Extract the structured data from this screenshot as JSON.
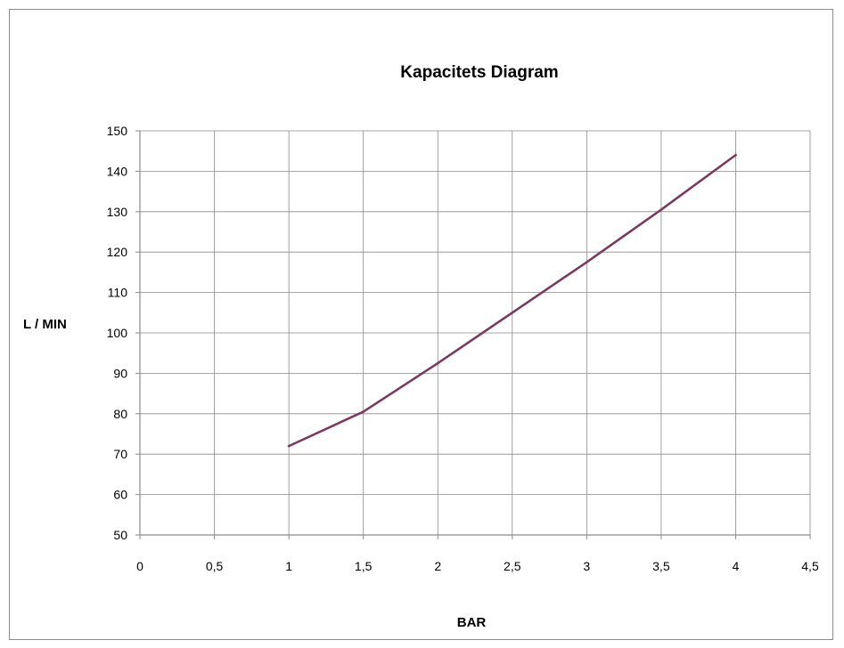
{
  "chart_data": {
    "type": "line",
    "title": "Kapacitets Diagram",
    "xlabel": "BAR",
    "ylabel": "L / MIN",
    "xlim": [
      0,
      4.5
    ],
    "ylim": [
      50,
      150
    ],
    "x_ticks": [
      0,
      0.5,
      1,
      1.5,
      2,
      2.5,
      3,
      3.5,
      4,
      4.5
    ],
    "x_tick_labels": [
      "0",
      "0,5",
      "1",
      "1,5",
      "2",
      "2,5",
      "3",
      "3,5",
      "4",
      "4,5"
    ],
    "y_ticks": [
      50,
      60,
      70,
      80,
      90,
      100,
      110,
      120,
      130,
      140,
      150
    ],
    "y_tick_labels": [
      "50",
      "60",
      "70",
      "80",
      "90",
      "100",
      "110",
      "120",
      "130",
      "140",
      "150"
    ],
    "grid": true,
    "legend": "none",
    "series": [
      {
        "color": "#7b3a5e",
        "x": [
          1,
          1.5,
          2,
          2.5,
          3,
          3.5,
          4
        ],
        "y": [
          72,
          80.5,
          92.5,
          105,
          117.5,
          130.5,
          144
        ]
      }
    ]
  }
}
